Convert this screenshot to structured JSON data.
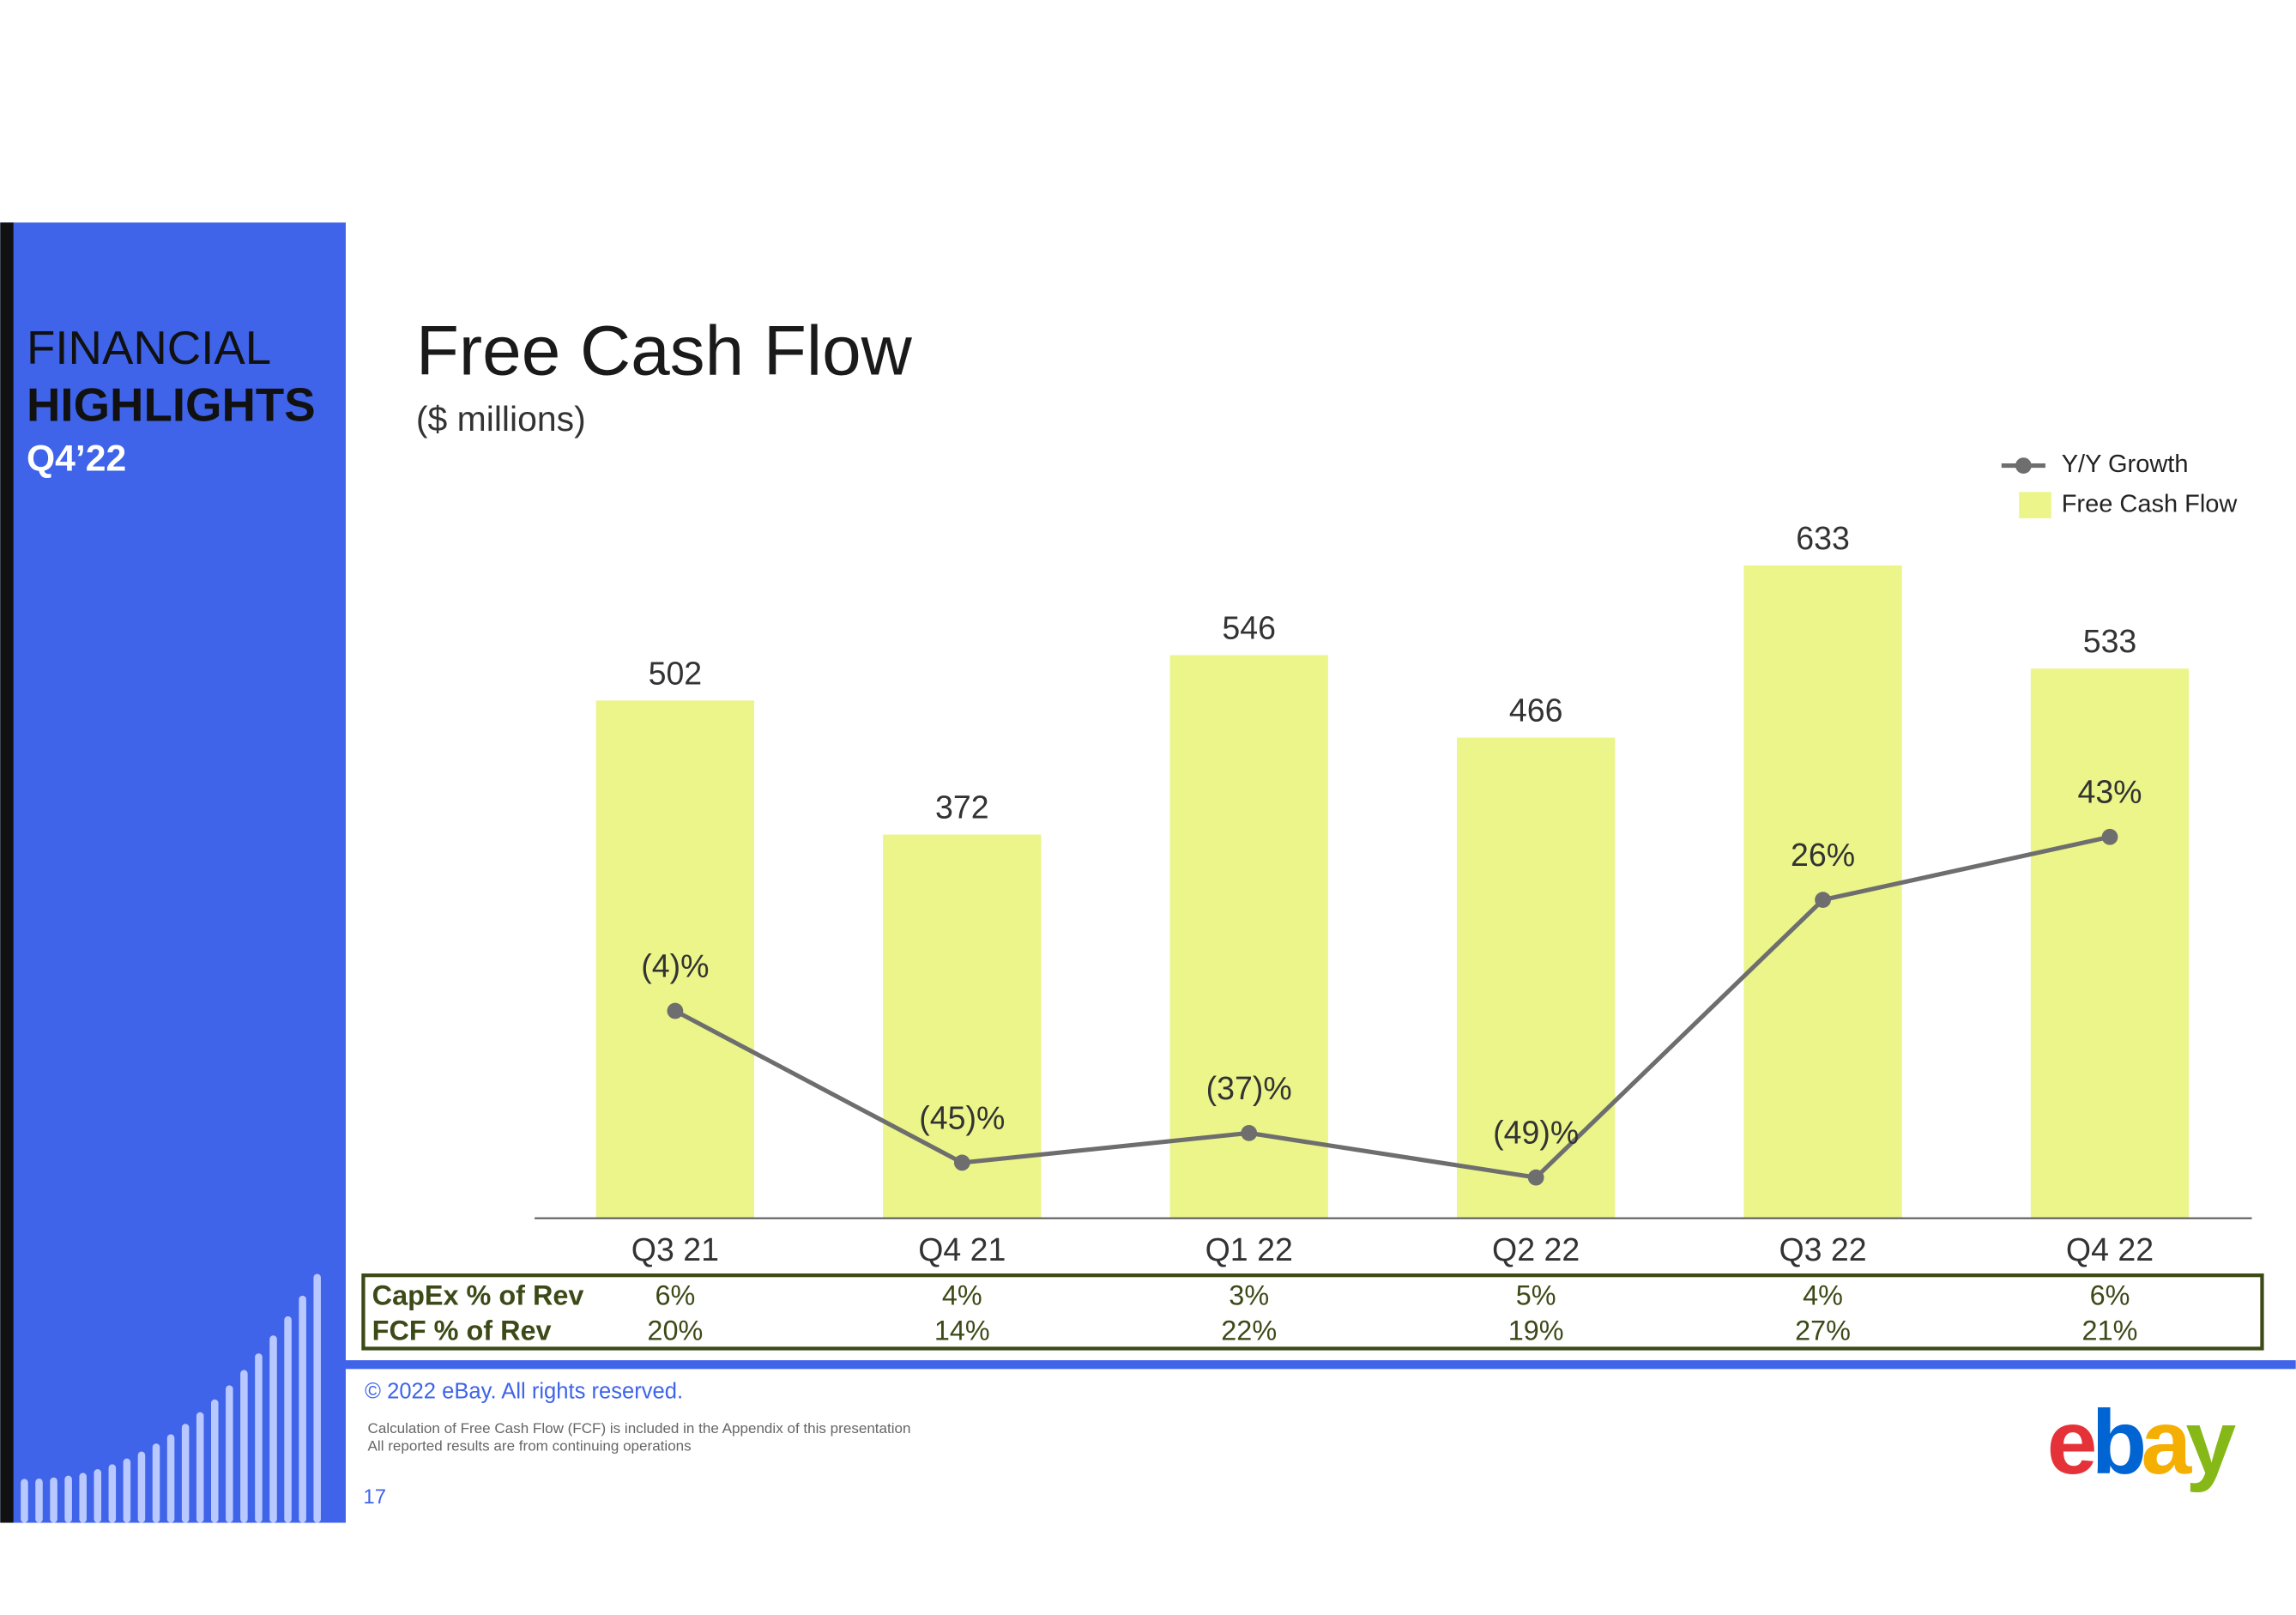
{
  "sidebar": {
    "line1": "FINANCIAL",
    "line2": "HIGHLIGHTS",
    "line3": "Q4’22"
  },
  "chart_data": {
    "type": "bar",
    "title": "Free Cash Flow",
    "subtitle": "($ millions)",
    "categories": [
      "Q3 21",
      "Q4 21",
      "Q1 22",
      "Q2 22",
      "Q3 22",
      "Q4 22"
    ],
    "ylim": [
      0,
      700
    ],
    "y2lim": [
      -60,
      135
    ],
    "legend": "top-right",
    "series": [
      {
        "name": "Y/Y Growth",
        "type": "line",
        "axis": "y2",
        "color": "#6e6e6e",
        "values": [
          -4,
          -45,
          -37,
          -49,
          26,
          43
        ],
        "value_labels": [
          "(4)%",
          "(45)%",
          "(37)%",
          "(49)%",
          "26%",
          "43%"
        ]
      },
      {
        "name": "Free Cash Flow",
        "type": "bar",
        "color": "#ebf58a",
        "values": [
          502,
          372,
          546,
          466,
          633,
          533
        ]
      }
    ]
  },
  "table": {
    "rows": [
      {
        "label": "CapEx % of Rev",
        "cells": [
          "6%",
          "4%",
          "3%",
          "5%",
          "4%",
          "6%"
        ]
      },
      {
        "label": "FCF % of Rev",
        "cells": [
          "20%",
          "14%",
          "22%",
          "19%",
          "27%",
          "21%"
        ]
      }
    ]
  },
  "footer": {
    "copyright": "© 2022 eBay. All rights reserved.",
    "notes": [
      "Calculation of Free Cash Flow (FCF) is included in the Appendix of this presentation",
      "All reported results are from continuing operations"
    ],
    "page_number": "17",
    "logo": [
      "e",
      "b",
      "a",
      "y"
    ]
  }
}
